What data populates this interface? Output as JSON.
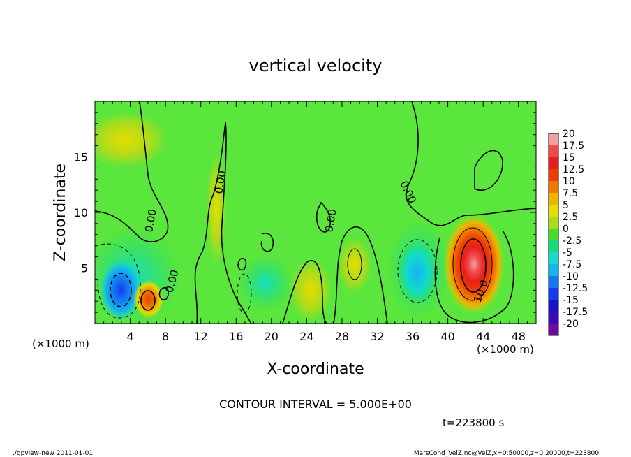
{
  "chart_data": {
    "type": "heatmap",
    "title": "vertical velocity",
    "xlabel": "X-coordinate",
    "ylabel": "Z-coordinate",
    "x_unit_left": "(×1000 m)",
    "x_unit_right": "(×1000 m)",
    "xlim": [
      0,
      50
    ],
    "ylim": [
      0,
      20
    ],
    "xticks": [
      4,
      8,
      12,
      16,
      20,
      24,
      28,
      32,
      36,
      40,
      44,
      48
    ],
    "yticks": [
      5,
      10,
      15
    ],
    "colorbar": {
      "labels": [
        "20",
        "17.5",
        "15",
        "12.5",
        "10",
        "7.5",
        "5",
        "2.5",
        "0",
        "-2.5",
        "-5",
        "-7.5",
        "-10",
        "-12.5",
        "-15",
        "-17.5",
        "-20"
      ],
      "colors": [
        "#f4a0a0",
        "#f04a4a",
        "#e81e1e",
        "#f03c00",
        "#f07800",
        "#f0b400",
        "#e8dc00",
        "#aadc1e",
        "#46dc28",
        "#14dc78",
        "#14dcc8",
        "#14b4f0",
        "#1478f0",
        "#143cf0",
        "#1414c8",
        "#3c0ab4",
        "#6e0aa0"
      ]
    },
    "field_background": "#5ae63c",
    "features": [
      {
        "kind": "downdraft",
        "x": 3.0,
        "z": 3.0,
        "value": -12
      },
      {
        "kind": "updraft",
        "x": 6.0,
        "z": 2.3,
        "value": 14
      },
      {
        "kind": "downdraft",
        "x": 37.0,
        "z": 5.0,
        "value": -8
      },
      {
        "kind": "updraft",
        "x": 43.0,
        "z": 5.0,
        "value": 19
      },
      {
        "kind": "updraft",
        "x": 24.5,
        "z": 3.5,
        "value": 7
      },
      {
        "kind": "updraft",
        "x": 29.5,
        "z": 5.5,
        "value": 6
      }
    ],
    "contour_labels": [
      "0.00",
      "0.00",
      "0.00",
      "0.00",
      "0.00",
      "10.0"
    ],
    "contour_interval": "CONTOUR INTERVAL = 5.000E+00",
    "time_label": "t=223800 s"
  },
  "footer": {
    "left": "./gpview-new   2011-01-01",
    "right": "MarsCond_VelZ.nc@VelZ,x=0:50000,z=0:20000,t=223800"
  }
}
